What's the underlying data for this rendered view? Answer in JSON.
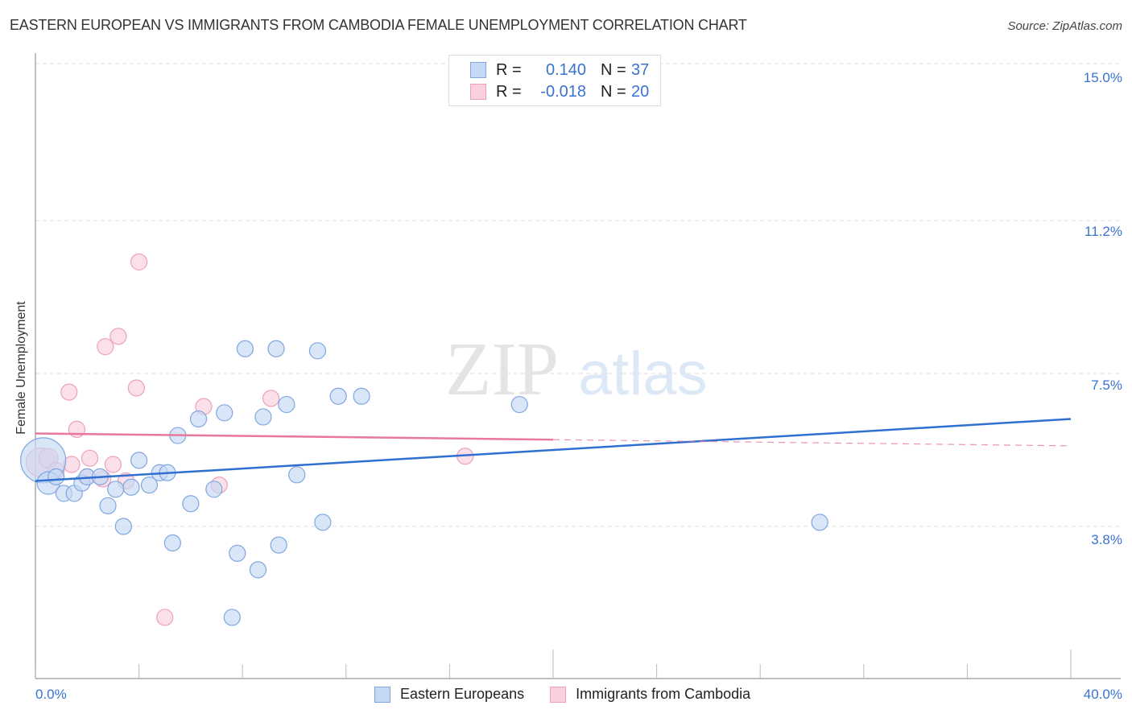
{
  "header": {
    "title": "EASTERN EUROPEAN VS IMMIGRANTS FROM CAMBODIA FEMALE UNEMPLOYMENT CORRELATION CHART",
    "source": "Source: ZipAtlas.com"
  },
  "watermark": {
    "zip": "ZIP",
    "atlas": "atlas"
  },
  "stats_legend": {
    "rows": [
      {
        "r_label": "R =",
        "r_value": "0.140",
        "n_label": "N =",
        "n_value": "37",
        "color": "#c5d9f5"
      },
      {
        "r_label": "R =",
        "r_value": "-0.018",
        "n_label": "N =",
        "n_value": "20",
        "color": "#fbd0dd"
      }
    ]
  },
  "axes": {
    "y_label": "Female Unemployment",
    "y_ticks": [
      "15.0%",
      "11.2%",
      "7.5%",
      "3.8%"
    ],
    "x_min_label": "0.0%",
    "x_max_label": "40.0%"
  },
  "bottom_legend": {
    "items": [
      {
        "label": "Eastern Europeans",
        "color": "#c5d9f5"
      },
      {
        "label": "Immigrants from Cambodia",
        "color": "#fbd0dd"
      }
    ]
  },
  "colors": {
    "blue_fill": "#c5d9f5",
    "blue_stroke": "#7fa6e0",
    "blue_line": "#2f6fcf",
    "pink_fill": "#fbd0dd",
    "pink_stroke": "#eea0b8",
    "pink_line": "#e8789c",
    "tick_text": "#3a72d0",
    "grid": "#dddddd"
  },
  "chart_data": {
    "type": "scatter",
    "title": "EASTERN EUROPEAN VS IMMIGRANTS FROM CAMBODIA FEMALE UNEMPLOYMENT CORRELATION CHART",
    "xlabel": "",
    "ylabel": "Female Unemployment",
    "xlim": [
      0,
      40
    ],
    "ylim": [
      0.7,
      15.35
    ],
    "y_gridlines": [
      15.0,
      11.2,
      7.5,
      3.8
    ],
    "x_tick_positions": [
      0,
      4,
      8,
      12,
      16,
      20,
      24,
      28,
      32,
      36,
      40
    ],
    "legend_position": "bottom",
    "series": [
      {
        "name": "Eastern Europeans",
        "r": 0.14,
        "n": 37,
        "trend": {
          "x": [
            0,
            40
          ],
          "y": [
            4.9,
            6.4
          ]
        },
        "points": [
          {
            "x": 0.3,
            "y": 5.4,
            "size": 28
          },
          {
            "x": 0.5,
            "y": 4.85,
            "size": 14
          },
          {
            "x": 0.8,
            "y": 5.0,
            "size": 10
          },
          {
            "x": 1.1,
            "y": 4.6,
            "size": 10
          },
          {
            "x": 1.5,
            "y": 4.6,
            "size": 10
          },
          {
            "x": 1.8,
            "y": 4.85,
            "size": 10
          },
          {
            "x": 2.0,
            "y": 5.0,
            "size": 10
          },
          {
            "x": 2.5,
            "y": 5.0,
            "size": 10
          },
          {
            "x": 2.8,
            "y": 4.3,
            "size": 10
          },
          {
            "x": 3.1,
            "y": 4.7,
            "size": 10
          },
          {
            "x": 3.4,
            "y": 3.8,
            "size": 10
          },
          {
            "x": 3.7,
            "y": 4.75,
            "size": 10
          },
          {
            "x": 4.0,
            "y": 5.4,
            "size": 10
          },
          {
            "x": 4.4,
            "y": 4.8,
            "size": 10
          },
          {
            "x": 4.8,
            "y": 5.1,
            "size": 10
          },
          {
            "x": 5.1,
            "y": 5.1,
            "size": 10
          },
          {
            "x": 5.3,
            "y": 3.4,
            "size": 10
          },
          {
            "x": 5.5,
            "y": 6.0,
            "size": 10
          },
          {
            "x": 6.0,
            "y": 4.35,
            "size": 10
          },
          {
            "x": 6.3,
            "y": 6.4,
            "size": 10
          },
          {
            "x": 6.9,
            "y": 4.7,
            "size": 10
          },
          {
            "x": 7.3,
            "y": 6.55,
            "size": 10
          },
          {
            "x": 7.6,
            "y": 1.6,
            "size": 10
          },
          {
            "x": 7.8,
            "y": 3.15,
            "size": 10
          },
          {
            "x": 8.1,
            "y": 8.1,
            "size": 10
          },
          {
            "x": 8.6,
            "y": 2.75,
            "size": 10
          },
          {
            "x": 8.8,
            "y": 6.45,
            "size": 10
          },
          {
            "x": 9.3,
            "y": 8.1,
            "size": 10
          },
          {
            "x": 9.4,
            "y": 3.35,
            "size": 10
          },
          {
            "x": 9.7,
            "y": 6.75,
            "size": 10
          },
          {
            "x": 10.1,
            "y": 5.05,
            "size": 10
          },
          {
            "x": 10.9,
            "y": 8.05,
            "size": 10
          },
          {
            "x": 11.1,
            "y": 3.9,
            "size": 10
          },
          {
            "x": 11.7,
            "y": 6.95,
            "size": 10
          },
          {
            "x": 12.6,
            "y": 6.95,
            "size": 10
          },
          {
            "x": 18.7,
            "y": 6.75,
            "size": 10
          },
          {
            "x": 30.3,
            "y": 3.9,
            "size": 10
          }
        ]
      },
      {
        "name": "Immigrants from Cambodia",
        "r": -0.018,
        "n": 20,
        "trend": {
          "x": [
            0,
            20
          ],
          "y": [
            6.05,
            5.9
          ],
          "dashed_extension": {
            "x": [
              20,
              40
            ],
            "y": [
              5.9,
              5.75
            ]
          }
        },
        "points": [
          {
            "x": 0.2,
            "y": 5.35,
            "size": 18
          },
          {
            "x": 0.5,
            "y": 5.45,
            "size": 12
          },
          {
            "x": 0.8,
            "y": 5.15,
            "size": 10
          },
          {
            "x": 1.4,
            "y": 5.3,
            "size": 10
          },
          {
            "x": 1.3,
            "y": 7.05,
            "size": 10
          },
          {
            "x": 1.6,
            "y": 6.15,
            "size": 10
          },
          {
            "x": 2.0,
            "y": 5.0,
            "size": 10
          },
          {
            "x": 2.1,
            "y": 5.45,
            "size": 10
          },
          {
            "x": 2.6,
            "y": 4.95,
            "size": 10
          },
          {
            "x": 2.7,
            "y": 8.15,
            "size": 10
          },
          {
            "x": 3.0,
            "y": 5.3,
            "size": 10
          },
          {
            "x": 3.2,
            "y": 8.4,
            "size": 10
          },
          {
            "x": 3.5,
            "y": 4.9,
            "size": 10
          },
          {
            "x": 3.9,
            "y": 7.15,
            "size": 10
          },
          {
            "x": 4.0,
            "y": 10.2,
            "size": 10
          },
          {
            "x": 5.0,
            "y": 1.6,
            "size": 10
          },
          {
            "x": 6.5,
            "y": 6.7,
            "size": 10
          },
          {
            "x": 7.1,
            "y": 4.8,
            "size": 10
          },
          {
            "x": 9.1,
            "y": 6.9,
            "size": 10
          },
          {
            "x": 16.6,
            "y": 5.5,
            "size": 10
          }
        ]
      }
    ]
  }
}
